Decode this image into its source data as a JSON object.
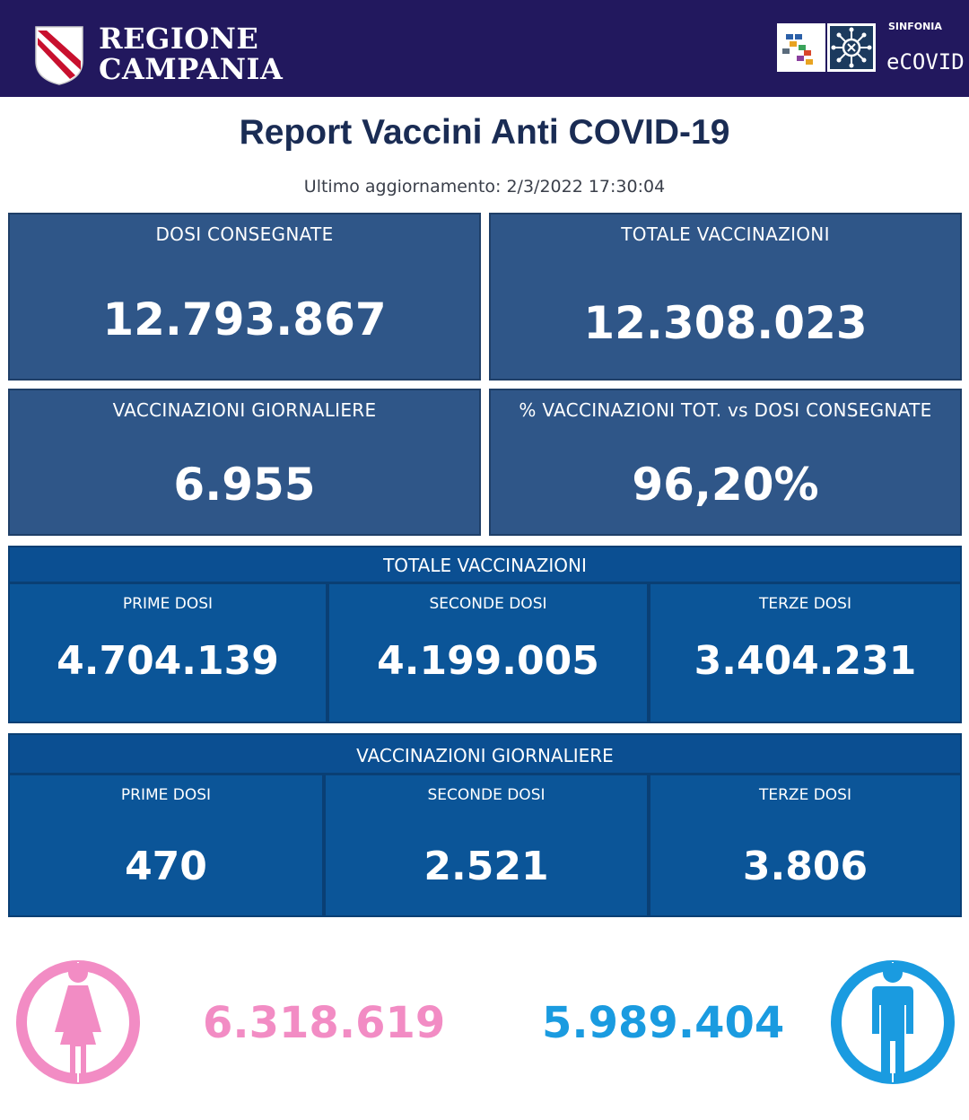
{
  "header": {
    "brand_line1": "REGIONE",
    "brand_line2": "CAMPANIA",
    "sinfonia_label": "SINFONIA",
    "ecovid_label": "eCOVID",
    "bg_color": "#22185e"
  },
  "report": {
    "title": "Report Vaccini Anti COVID-19",
    "last_update": "Ultimo aggiornamento: 2/3/2022  17:30:04"
  },
  "summary": {
    "dosi_consegnate": {
      "label": "DOSI  CONSEGNATE",
      "value": "12.793.867"
    },
    "totale_vaccinazioni": {
      "label": "TOTALE VACCINAZIONI",
      "value": "12.308.023"
    },
    "vaccinazioni_giornaliere": {
      "label": "VACCINAZIONI GIORNALIERE",
      "value": "6.955"
    },
    "percentuale": {
      "label": "% VACCINAZIONI TOT. vs DOSI CONSEGNATE",
      "value": "96,20%"
    }
  },
  "totale_section": {
    "title": "TOTALE VACCINAZIONI",
    "cells": [
      {
        "label": "PRIME DOSI",
        "value": "4.704.139"
      },
      {
        "label": "SECONDE DOSI",
        "value": "4.199.005"
      },
      {
        "label": "TERZE DOSI",
        "value": "3.404.231"
      }
    ]
  },
  "giornaliere_section": {
    "title": "VACCINAZIONI GIORNALIERE",
    "cells": [
      {
        "label": "PRIME DOSI",
        "value": "470"
      },
      {
        "label": "SECONDE DOSI",
        "value": "2.521"
      },
      {
        "label": "TERZE DOSI",
        "value": "3.806"
      }
    ]
  },
  "gender": {
    "female": {
      "icon": "female-icon",
      "value": "6.318.619",
      "color": "#f28cc4"
    },
    "male": {
      "icon": "male-icon",
      "value": "5.989.404",
      "color": "#1a9be0"
    }
  }
}
